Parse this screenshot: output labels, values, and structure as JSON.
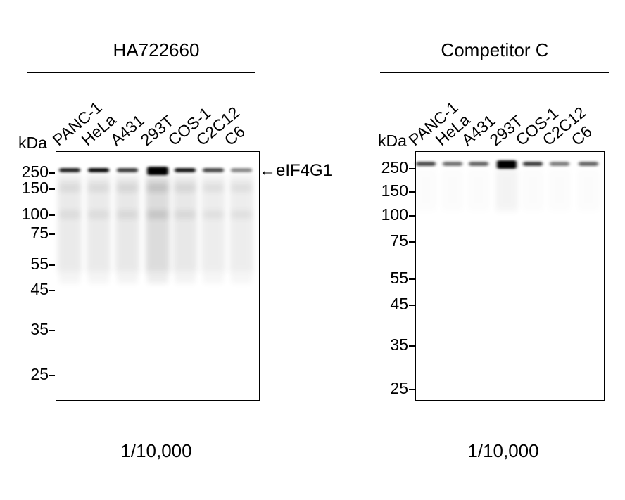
{
  "panels": [
    {
      "title": "HA722660",
      "dilution": "1/10,000",
      "unit_label": "kDa",
      "lanes": [
        "PANC-1",
        "HeLa",
        "A431",
        "293T",
        "COS-1",
        "C2C12",
        "C6"
      ],
      "markers": [
        "250",
        "150",
        "100",
        "75",
        "55",
        "45",
        "35",
        "25"
      ],
      "target_label": "←eIF4G1",
      "main_band_intensity": [
        0.85,
        0.95,
        0.75,
        1.0,
        0.9,
        0.7,
        0.45
      ],
      "background_smear_intensity": [
        0.35,
        0.35,
        0.4,
        0.6,
        0.4,
        0.3,
        0.3
      ]
    },
    {
      "title": "Competitor C",
      "dilution": "1/10,000",
      "unit_label": "kDa",
      "lanes": [
        "PANC-1",
        "HeLa",
        "A431",
        "293T",
        "COS-1",
        "C2C12",
        "C6"
      ],
      "markers": [
        "250",
        "150",
        "100",
        "75",
        "55",
        "45",
        "35",
        "25"
      ],
      "main_band_intensity": [
        0.7,
        0.55,
        0.6,
        1.0,
        0.75,
        0.5,
        0.6
      ],
      "background_smear_intensity": [
        0.05,
        0.05,
        0.05,
        0.2,
        0.05,
        0.05,
        0.05
      ]
    }
  ]
}
